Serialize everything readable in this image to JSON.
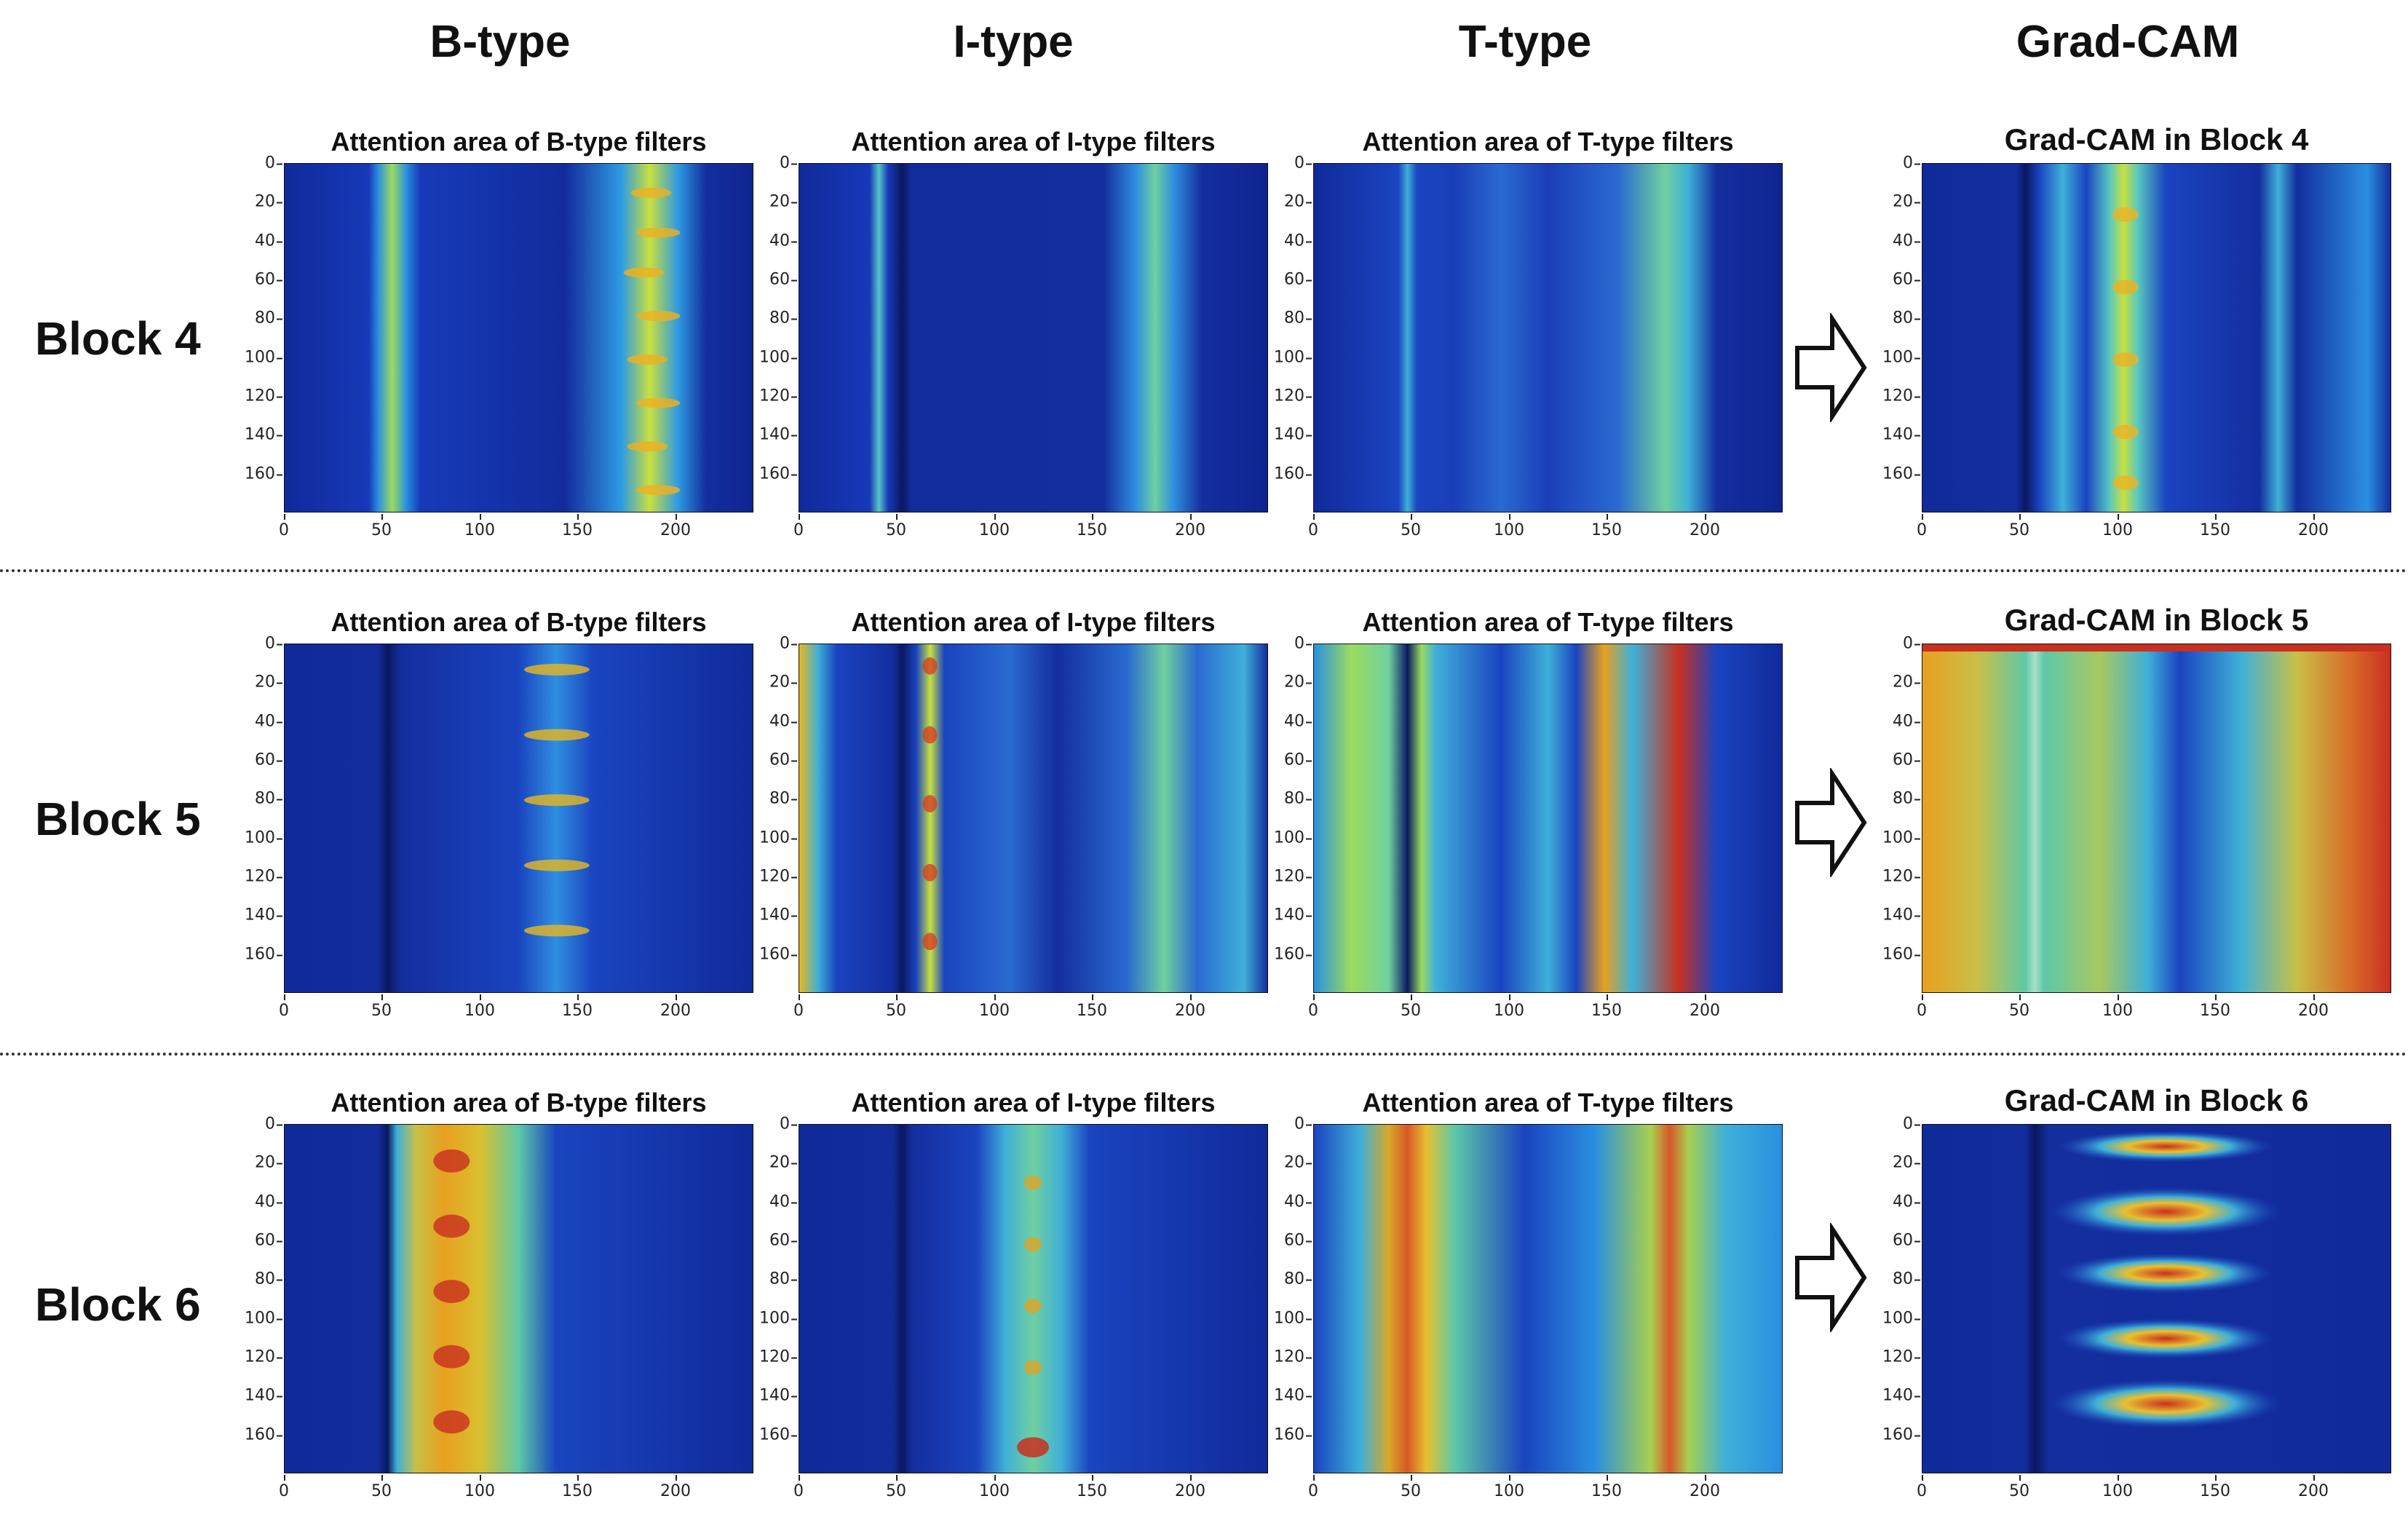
{
  "columns": {
    "b_type": "B-type",
    "i_type": "I-type",
    "t_type": "T-type",
    "gradcam": "Grad-CAM"
  },
  "rows": [
    {
      "label": "Block 4",
      "titles": [
        "Attention area of B-type filters",
        "Attention area of I-type filters",
        "Attention area of T-type filters",
        "Grad-CAM in Block 4"
      ]
    },
    {
      "label": "Block 5",
      "titles": [
        "Attention area of B-type filters",
        "Attention area of I-type filters",
        "Attention area of T-type filters",
        "Grad-CAM in Block 5"
      ]
    },
    {
      "label": "Block 6",
      "titles": [
        "Attention area of B-type filters",
        "Attention area of I-type filters",
        "Attention area of T-type filters",
        "Grad-CAM in Block 6"
      ]
    }
  ],
  "axes": {
    "y_ticks": [
      "0",
      "20",
      "40",
      "60",
      "80",
      "100",
      "120",
      "140",
      "160"
    ],
    "x_ticks": [
      "0",
      "50",
      "100",
      "150",
      "200"
    ],
    "x_range": [
      0,
      240
    ],
    "y_range": [
      0,
      180
    ]
  },
  "colormap": {
    "background": "#0d1f8a",
    "low": "#1840c8",
    "mid_low": "#1fa0e8",
    "mid": "#7fd47a",
    "mid_high": "#f0e020",
    "high": "#b81818"
  },
  "arrow_icon": "right-arrow-icon"
}
